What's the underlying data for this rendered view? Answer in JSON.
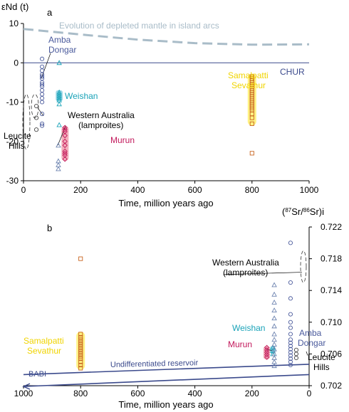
{
  "colors": {
    "axis": "#000000",
    "chur": "#3b4a8c",
    "mantle": "#a9bcc8",
    "amba": "#4a5a9c",
    "weishan": "#1aa3b8",
    "weishan_box": "#8fd3e3",
    "murun": "#c2185b",
    "murun_box": "#f2a6b5",
    "samal": "#f0d400",
    "samal_box": "#fff176",
    "samal_pt": "#c8641e",
    "tri": "#6e84b0",
    "grey": "#444444"
  },
  "chart_data": [
    {
      "type": "scatter",
      "panel_label": "a",
      "ylabel": "εNd (t)",
      "xlabel": "Time, million years ago",
      "xlim": [
        0,
        1000
      ],
      "ylim": [
        -30,
        10
      ],
      "xticks": [
        0,
        200,
        400,
        600,
        800,
        1000
      ],
      "yticks": [
        10,
        0,
        -10,
        -20,
        -30
      ],
      "reference_lines": [
        {
          "label": "CHUR",
          "points": [
            [
              0,
              0
            ],
            [
              1000,
              0
            ]
          ]
        },
        {
          "label": "Evolution of depleted mantle in island arcs",
          "points": [
            [
              0,
              8.6
            ],
            [
              200,
              7.2
            ],
            [
              400,
              5.9
            ],
            [
              600,
              5.0
            ],
            [
              800,
              4.6
            ],
            [
              1000,
              4.7
            ]
          ]
        }
      ],
      "groups": [
        {
          "label": "Amba Dongar",
          "marker": "circle",
          "color": "amba",
          "x": 65,
          "y": [
            1,
            -1,
            -2,
            -3,
            -3.5,
            -4,
            -5,
            -5.5,
            -6,
            -7,
            -8,
            -9,
            -10,
            -13,
            -15.5,
            -16
          ]
        },
        {
          "label": "Weishan",
          "marker": "triangle",
          "color": "weishan",
          "x": 125,
          "y": [
            0,
            -7.5,
            -8,
            -8.5,
            -9,
            -9.5,
            -10.5,
            -15.8
          ]
        },
        {
          "label": "Murun",
          "marker": "diamond",
          "color": "murun",
          "x": 145,
          "y": [
            -16.5,
            -17,
            -17.5,
            -18.5,
            -20,
            -21,
            -22.5,
            -23,
            -23.5,
            -24.5
          ]
        },
        {
          "label": "Western Australia (lamproites)",
          "marker": "triangle",
          "color": "tri",
          "x": 122,
          "y": [
            -21,
            -25,
            -26,
            -27
          ]
        },
        {
          "label": "Leucite Hills",
          "marker": "circle",
          "color": "grey",
          "x": 45,
          "y": [
            -11,
            -14,
            -17
          ]
        },
        {
          "label": "Samalpatti Sevathur",
          "marker": "square",
          "color": "samal_pt",
          "x": 800,
          "y": [
            -3.5,
            -4,
            -4.5,
            -5,
            -5.5,
            -6,
            -6.5,
            -7,
            -7.5,
            -8,
            -8.5,
            -9,
            -9.5,
            -10,
            -10.5,
            -11,
            -11.5,
            -12,
            -13,
            -14,
            -15.5,
            -23
          ]
        }
      ]
    },
    {
      "type": "scatter",
      "panel_label": "b",
      "ylabel": "(⁸⁷Sr/⁸⁶Sr)i",
      "xlabel": "Time, million years ago",
      "xlim": [
        1000,
        0
      ],
      "ylim": [
        0.702,
        0.722
      ],
      "xticks": [
        1000,
        800,
        600,
        400,
        200,
        0
      ],
      "yticks": [
        0.722,
        0.718,
        0.714,
        0.71,
        0.706,
        0.702
      ],
      "reference_lines": [
        {
          "label": "Undifferentiated reservoir",
          "points": [
            [
              1000,
              0.7034
            ],
            [
              0,
              0.7047
            ]
          ]
        },
        {
          "label": "BABI",
          "points": [
            [
              1000,
              0.7019
            ],
            [
              0,
              0.7034
            ]
          ]
        }
      ],
      "groups": [
        {
          "label": "Samalpatti Sevathur",
          "marker": "square",
          "color": "samal_pt",
          "x": 800,
          "y": [
            0.7042,
            0.7046,
            0.705,
            0.7054,
            0.7057,
            0.706,
            0.7063,
            0.7066,
            0.7069,
            0.7072,
            0.7075,
            0.7078,
            0.7081,
            0.7085,
            0.718
          ]
        },
        {
          "label": "Murun",
          "marker": "diamond",
          "color": "murun",
          "x": 148,
          "y": [
            0.7056,
            0.7059,
            0.7062,
            0.7065,
            0.7068
          ]
        },
        {
          "label": "Weishan",
          "marker": "triangle",
          "color": "weishan",
          "x": 127,
          "y": [
            0.706,
            0.7064,
            0.7068
          ]
        },
        {
          "label": "Western Australia (lamproites)",
          "marker": "triangle",
          "color": "tri",
          "x": 122,
          "y": [
            0.7045,
            0.705,
            0.7055,
            0.706,
            0.7066,
            0.7072,
            0.7078,
            0.7085,
            0.7095,
            0.7105,
            0.7115,
            0.7125,
            0.7135,
            0.7147
          ]
        },
        {
          "label": "Amba Dongar",
          "marker": "circle",
          "color": "amba",
          "x": 65,
          "y": [
            0.7046,
            0.705,
            0.7054,
            0.7058,
            0.7062,
            0.7066,
            0.707,
            0.7074,
            0.7078,
            0.7085,
            0.7093,
            0.71,
            0.711,
            0.713,
            0.715,
            0.72
          ]
        },
        {
          "label": "Leucite Hills",
          "marker": "circle",
          "color": "grey",
          "x": 45,
          "y": [
            0.7055,
            0.706,
            0.7065
          ]
        }
      ]
    }
  ],
  "annotations": {
    "mantle_label": "Evolution of depleted mantle in island arcs",
    "chur_label": "CHUR",
    "amba_line1": "Amba",
    "amba_line2": "Dongar",
    "weishan": "Weishan",
    "wa_line1": "Western Australia",
    "wa_line2": "(lamproites)",
    "murun": "Murun",
    "leucite_line1": "Leucite",
    "leucite_line2": "Hills",
    "samal_line1": "Samalpatti",
    "samal_line2": "Sevathur",
    "undiff": "Undifferentiated reservoir",
    "babi": "BABI"
  }
}
